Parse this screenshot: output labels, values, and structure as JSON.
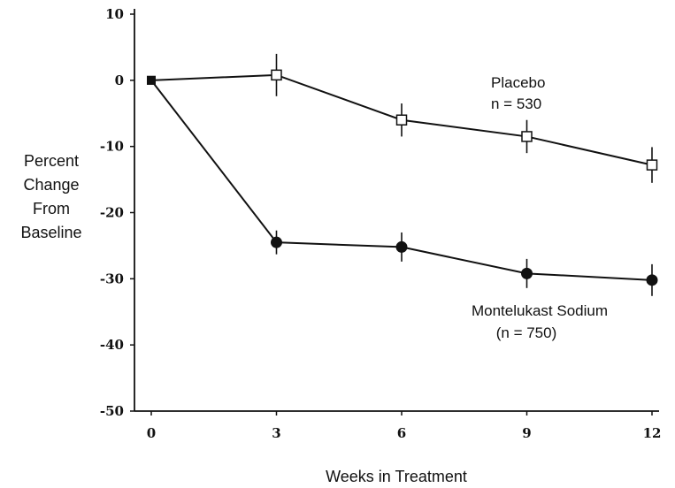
{
  "chart_data": {
    "type": "line",
    "xlabel": "Weeks in Treatment",
    "ylabel_lines": [
      "Percent",
      "Change",
      "From",
      "Baseline"
    ],
    "x": [
      0,
      3,
      6,
      9,
      12
    ],
    "xlim": [
      0,
      12
    ],
    "ylim": [
      -50,
      10
    ],
    "xticks": [
      "0",
      "3",
      "6",
      "9",
      "12"
    ],
    "yticks": [
      "10",
      "0",
      "-10",
      "-20",
      "-30",
      "-40",
      "-50"
    ],
    "grid": false,
    "series": [
      {
        "name": "Placebo",
        "annotation_lines": [
          "Placebo",
          "n = 530"
        ],
        "marker": "open-square",
        "values": [
          0,
          0.8,
          -6,
          -8.5,
          -12.8
        ],
        "error": [
          0,
          3.2,
          2.5,
          2.5,
          2.7
        ]
      },
      {
        "name": "Montelukast Sodium",
        "annotation_lines": [
          "Montelukast Sodium",
          "(n = 750)"
        ],
        "marker": "filled-circle",
        "values": [
          0,
          -24.5,
          -25.2,
          -29.2,
          -30.2
        ],
        "error": [
          0,
          1.8,
          2.2,
          2.2,
          2.4
        ]
      }
    ]
  }
}
